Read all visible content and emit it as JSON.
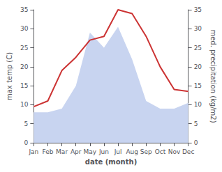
{
  "chart_data": {
    "type": "line",
    "categories": [
      "Jan",
      "Feb",
      "Mar",
      "Apr",
      "May",
      "Jun",
      "Jul",
      "Aug",
      "Sep",
      "Oct",
      "Nov",
      "Dec"
    ],
    "xlabel": "date (month)",
    "ylabel": "max temp (C)",
    "y2label": "med. precipitation (kg/m2)",
    "series": [
      {
        "type": "area",
        "axis": "y2",
        "color": "#c8d4f0",
        "values": [
          8.0,
          8.0,
          9.0,
          15.0,
          29.0,
          25.0,
          30.5,
          22.0,
          11.0,
          9.0,
          9.0,
          10.5
        ]
      },
      {
        "type": "line",
        "color": "#cc3333",
        "values": [
          9.5,
          11.0,
          19.0,
          22.5,
          27.0,
          28.0,
          35.0,
          34.0,
          28.0,
          20.0,
          14.0,
          13.5
        ]
      }
    ],
    "ylim": [
      0,
      35
    ],
    "yticks": [
      0,
      5,
      10,
      15,
      20,
      25,
      30,
      35
    ],
    "y2lim": [
      0,
      35
    ],
    "y2ticks": [
      0,
      5,
      10,
      15,
      20,
      25,
      30,
      35
    ],
    "grid": false
  }
}
